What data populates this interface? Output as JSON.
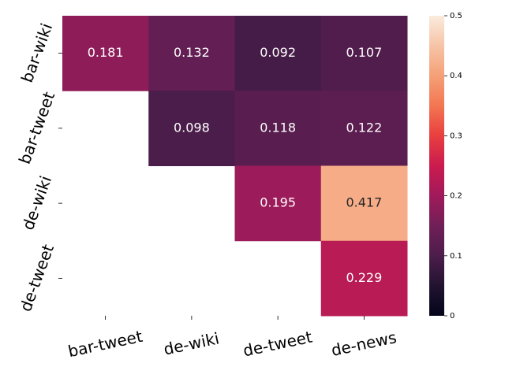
{
  "chart_data": {
    "type": "heatmap",
    "rows": [
      "bar-wiki",
      "bar-tweet",
      "de-wiki",
      "de-tweet"
    ],
    "columns": [
      "bar-tweet",
      "de-wiki",
      "de-tweet",
      "de-news"
    ],
    "values": [
      [
        0.181,
        0.132,
        0.092,
        0.107
      ],
      [
        null,
        0.098,
        0.118,
        0.122
      ],
      [
        null,
        null,
        0.195,
        0.417
      ],
      [
        null,
        null,
        null,
        0.229
      ]
    ],
    "colormap": "rocket",
    "clim": [
      0,
      0.5
    ],
    "cticks": [
      0.0,
      0.1,
      0.2,
      0.3,
      0.4,
      0.5
    ],
    "colorbar": true
  }
}
